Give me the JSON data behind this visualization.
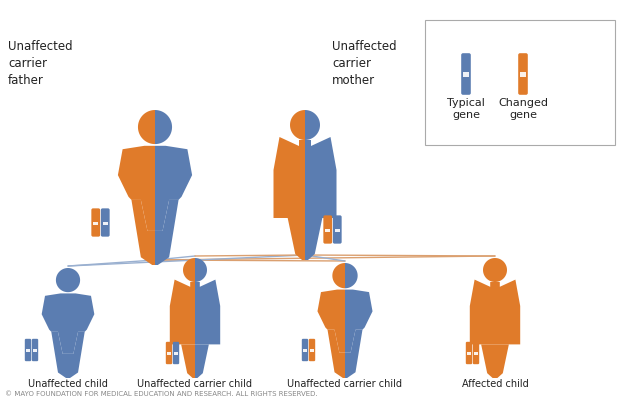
{
  "blue": "#5b7db1",
  "orange": "#e07b2a",
  "white": "#ffffff",
  "background": "#ffffff",
  "line_color_blue": "#9ab0d0",
  "line_color_orange": "#dba070",
  "text_color": "#222222",
  "copyright": "© MAYO FOUNDATION FOR MEDICAL EDUCATION AND RESEARCH. ALL RIGHTS RESERVED.",
  "title_father": "Unaffected\ncarrier\nfather",
  "title_mother": "Unaffected\ncarrier\nmother",
  "child_labels": [
    "Unaffected child",
    "Unaffected carrier child",
    "Unaffected carrier child",
    "Affected child"
  ],
  "legend_labels": [
    "Typical\ngene",
    "Changed\ngene"
  ],
  "figsize": [
    6.32,
    4.0
  ],
  "dpi": 100
}
